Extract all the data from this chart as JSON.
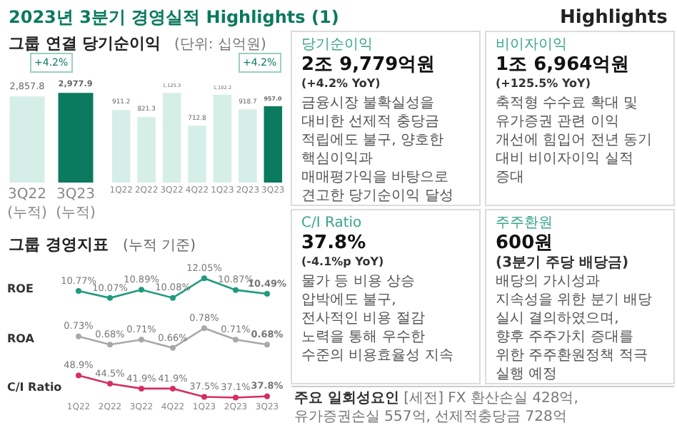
{
  "chart_data": [
    {
      "type": "bar",
      "title": "2023년 3분기 경영실적 Highlights (1)",
      "subtitle": "그룹 연결 당기순이익",
      "annotations": [
        "(단위: 십억원)",
        "+4.2%"
      ],
      "categories": [
        "3Q22 (누적)",
        "3Q23 (누적)"
      ],
      "values": [
        2857.8,
        2977.9
      ],
      "value_labels": [
        "2,857.8",
        "2,977.9"
      ],
      "colors": [
        "#d6eee8",
        "#0b7a5f"
      ],
      "tick_labels": "x"
    },
    {
      "type": "bar",
      "annotations": [
        "+4.2%"
      ],
      "categories": [
        "1Q22",
        "2Q22",
        "3Q22",
        "4Q22",
        "1Q23",
        "2Q23",
        "3Q23"
      ],
      "values": [
        911.2,
        821.3,
        1125.3,
        712.8,
        1102.2,
        918.7,
        957.0
      ],
      "value_labels": [
        "911.2",
        "821.3",
        "1,125.3",
        "712.8",
        "1,102.2",
        "918.7",
        "957.0"
      ],
      "colors": [
        "#d6eee8",
        "#d6eee8",
        "#d6eee8",
        "#d6eee8",
        "#d6eee8",
        "#d6eee8",
        "#0b7a5f"
      ],
      "tick_labels": "x"
    },
    {
      "type": "line",
      "title": "그룹 경영지표",
      "subtitle": "(누적 기준)",
      "categories": [
        null,
        null,
        null,
        null,
        null,
        null,
        null
      ],
      "marker": "circle",
      "line_style": "solid",
      "tick_labels": false,
      "series": [
        {
          "name": "ROE",
          "color": "#1f9a7c",
          "values": [
            10.77,
            10.07,
            10.89,
            10.08,
            12.05,
            10.87,
            10.49
          ],
          "value_labels": [
            "10.77%",
            "10.07%",
            "10.89%",
            "10.08%",
            "12.05%",
            "10.87%",
            "10.49%"
          ]
        }
      ]
    },
    {
      "type": "line",
      "categories": [
        null,
        null,
        null,
        null,
        null,
        null,
        null
      ],
      "marker": "circle",
      "line_style": "solid",
      "tick_labels": false,
      "series": [
        {
          "name": "ROA",
          "color": "#a8a8a8",
          "values": [
            0.73,
            0.68,
            0.71,
            0.66,
            0.78,
            0.71,
            0.68
          ],
          "value_labels": [
            "0.73%",
            "0.68%",
            "0.71%",
            "0.66%",
            "0.78%",
            "0.71%",
            "0.68%"
          ]
        }
      ]
    },
    {
      "type": "line",
      "categories": [
        "1Q22",
        "2Q22",
        "3Q22",
        "4Q22",
        "1Q23",
        "2Q23",
        "3Q23"
      ],
      "marker": "circle",
      "line_style": "solid",
      "tick_labels": "x",
      "series": [
        {
          "name": "C/I Ratio",
          "color": "#d42f63",
          "values": [
            48.9,
            44.5,
            41.9,
            41.9,
            37.5,
            37.1,
            37.8
          ],
          "value_labels": [
            "48.9%",
            "44.5%",
            "41.9%",
            "41.9%",
            "37.5%",
            "37.1%",
            "37.8%"
          ]
        }
      ]
    },
    {
      "type": "other",
      "title": "Highlights",
      "annotations": [
        "당기순이익",
        "2조 9,779억원",
        "(+4.2% YoY)",
        "금융시장 불확실성을 대비한 선제적 충당금 적립에도 불구, 양호한 핵심이익과 매매평가익을 바탕으로 견고한 당기순이익 달성",
        "비이자이익",
        "1조 6,964억원",
        "(+125.5% YoY)",
        "축적형 수수료 확대 및 유가증권 관련 이익 개선에 힘입어 전년 동기 대비 비이자이익 실적 증대",
        "C/I Ratio",
        "37.8%",
        "(-4.1%p YoY)",
        "물가 등 비용 상승 압박에도 불구, 전사적인 비용 절감 노력을 통해 우수한 수준의 비용효율성 지속",
        "주주환원",
        "600원",
        "(3분기 주당 배당금)",
        "배당의 가시성과 지속성을 위한 분기 배당 실시 결의하였으며, 향후 주주가치 증대를 위한 주주환원정책 적극 실행 예정",
        "주요 일회성요인",
        "[세전] FX 환산손실 428억, 유가증권손실 557억, 선제적충당금 728억"
      ]
    }
  ]
}
